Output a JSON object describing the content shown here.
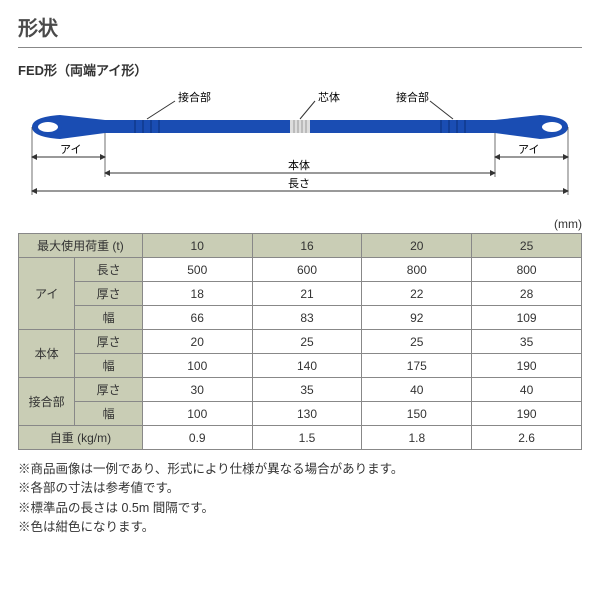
{
  "title": "形状",
  "subtitle": "FED形（両端アイ形）",
  "unit_label": "(mm)",
  "diagram": {
    "sling_color": "#1a4db3",
    "eye_fill": "#ffffff",
    "core_fill": "#e8e8e8",
    "line_color": "#333333",
    "labels": {
      "joint": "接合部",
      "core": "芯体",
      "eye": "アイ",
      "body": "本体",
      "length": "長さ"
    }
  },
  "table": {
    "header_bg": "#c9cdb5",
    "load_label": "最大使用荷重 (t)",
    "loads": [
      "10",
      "16",
      "20",
      "25"
    ],
    "groups": [
      {
        "name": "アイ",
        "rows": [
          {
            "label": "長さ",
            "vals": [
              "500",
              "600",
              "800",
              "800"
            ]
          },
          {
            "label": "厚さ",
            "vals": [
              "18",
              "21",
              "22",
              "28"
            ]
          },
          {
            "label": "幅",
            "vals": [
              "66",
              "83",
              "92",
              "109"
            ]
          }
        ]
      },
      {
        "name": "本体",
        "rows": [
          {
            "label": "厚さ",
            "vals": [
              "20",
              "25",
              "25",
              "35"
            ]
          },
          {
            "label": "幅",
            "vals": [
              "100",
              "140",
              "175",
              "190"
            ]
          }
        ]
      },
      {
        "name": "接合部",
        "rows": [
          {
            "label": "厚さ",
            "vals": [
              "30",
              "35",
              "40",
              "40"
            ]
          },
          {
            "label": "幅",
            "vals": [
              "100",
              "130",
              "150",
              "190"
            ]
          }
        ]
      }
    ],
    "weight_label": "自重 (kg/m)",
    "weights": [
      "0.9",
      "1.5",
      "1.8",
      "2.6"
    ]
  },
  "notes": [
    "※商品画像は一例であり、形式により仕様が異なる場合があります。",
    "※各部の寸法は参考値です。",
    "※標準品の長さは 0.5m 間隔です。",
    "※色は紺色になります。"
  ]
}
